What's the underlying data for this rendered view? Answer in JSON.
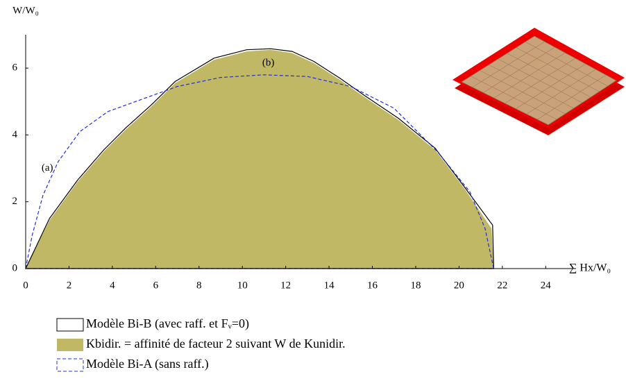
{
  "chart_data": {
    "type": "line",
    "x_label": "∑ Hx/W₀",
    "y_label": "W/W₀",
    "xlim": [
      0,
      25.4
    ],
    "ylim": [
      0,
      7
    ],
    "xticks": [
      0,
      2,
      4,
      6,
      8,
      10,
      12,
      14,
      16,
      18,
      20,
      22,
      24
    ],
    "yticks": [
      0,
      2,
      4,
      6
    ],
    "annotations": [
      {
        "text": "(a)",
        "x": 1,
        "y": 3
      },
      {
        "text": "(b)",
        "x": 11.2,
        "y": 6.15
      }
    ],
    "series": [
      {
        "name": "Modèle Bi-B  (avec raff. et Fᵥ=0)",
        "color": "#000000",
        "style": "solid",
        "x": [
          0,
          1.1,
          2.4,
          3.6,
          4.6,
          5.8,
          6.9,
          8.7,
          10.2,
          11.3,
          12.3,
          13.3,
          14.5,
          15.6,
          17.2,
          18.9,
          20.3,
          21.55,
          21.6
        ],
        "values": [
          0,
          1.5,
          2.65,
          3.55,
          4.2,
          4.9,
          5.6,
          6.3,
          6.55,
          6.58,
          6.5,
          6.2,
          5.7,
          5.2,
          4.5,
          3.6,
          2.4,
          1.3,
          0
        ]
      },
      {
        "name": "Kbidir. = affinité de facteur 2 suivant W de Kunidir.",
        "color": "#c0b865",
        "style": "area",
        "x": [
          0,
          1.1,
          2.4,
          3.6,
          4.6,
          5.8,
          6.9,
          8.7,
          10.2,
          11.3,
          12.3,
          13.3,
          14.5,
          15.6,
          17.2,
          18.9,
          20.3,
          21.5,
          21.6
        ],
        "values": [
          0,
          1.45,
          2.6,
          3.5,
          4.15,
          4.85,
          5.55,
          6.25,
          6.5,
          6.55,
          6.45,
          6.15,
          5.65,
          5.15,
          4.45,
          3.55,
          2.35,
          1.2,
          0
        ]
      },
      {
        "name": "Modèle Bi-A  (sans raff.)",
        "color": "#1f2fe0",
        "style": "dashed",
        "x": [
          0,
          0.3,
          0.8,
          1.5,
          2.5,
          3.8,
          5.5,
          7,
          9,
          11,
          13,
          15,
          17,
          19,
          20.5,
          21.2,
          21.5,
          21.6
        ],
        "values": [
          0,
          1.0,
          2.2,
          3.2,
          4.1,
          4.7,
          5.1,
          5.45,
          5.72,
          5.8,
          5.75,
          5.45,
          4.8,
          3.5,
          2.3,
          1.2,
          0.3,
          0
        ]
      }
    ]
  }
}
